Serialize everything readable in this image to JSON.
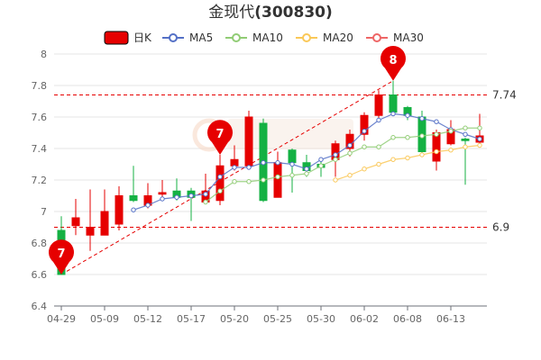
{
  "chart_data": {
    "type": "candlestick",
    "title": "金现代",
    "code": "(300830)",
    "legend": [
      {
        "name": "日K",
        "key": "k",
        "color": "#e60000",
        "style": "candle"
      },
      {
        "name": "MA5",
        "key": "ma5",
        "color": "#5470c6",
        "style": "line"
      },
      {
        "name": "MA10",
        "key": "ma10",
        "color": "#91cc75",
        "style": "line"
      },
      {
        "name": "MA20",
        "key": "ma20",
        "color": "#fac858",
        "style": "line"
      },
      {
        "name": "MA30",
        "key": "ma30",
        "color": "#ee6666",
        "style": "line"
      }
    ],
    "y_axis": {
      "min": 6.4,
      "max": 8,
      "ticks": [
        6.4,
        6.6,
        6.8,
        7,
        7.2,
        7.4,
        7.6,
        7.8,
        8
      ],
      "tick_labels": [
        "6.4",
        "6.6",
        "6.8",
        "7",
        "7.2",
        "7.4",
        "7.6",
        "7.8",
        "8"
      ]
    },
    "x_tick_labels": [
      {
        "index": 0,
        "label": "04-29"
      },
      {
        "index": 3,
        "label": "05-09"
      },
      {
        "index": 6,
        "label": "05-12"
      },
      {
        "index": 9,
        "label": "05-17"
      },
      {
        "index": 12,
        "label": "05-20"
      },
      {
        "index": 15,
        "label": "05-25"
      },
      {
        "index": 18,
        "label": "05-30"
      },
      {
        "index": 21,
        "label": "06-02"
      },
      {
        "index": 24,
        "label": "06-08"
      },
      {
        "index": 27,
        "label": "06-13"
      }
    ],
    "candles": [
      {
        "o": 6.88,
        "c": 6.6,
        "h": 6.97,
        "l": 6.6
      },
      {
        "o": 6.91,
        "c": 6.96,
        "h": 7.08,
        "l": 6.85
      },
      {
        "o": 6.85,
        "c": 6.9,
        "h": 7.14,
        "l": 6.75
      },
      {
        "o": 6.85,
        "c": 7.0,
        "h": 7.14,
        "l": 6.85
      },
      {
        "o": 6.92,
        "c": 7.1,
        "h": 7.16,
        "l": 6.88
      },
      {
        "o": 7.1,
        "c": 7.07,
        "h": 7.29,
        "l": 7.06
      },
      {
        "o": 7.04,
        "c": 7.1,
        "h": 7.18,
        "l": 7.02
      },
      {
        "o": 7.11,
        "c": 7.12,
        "h": 7.2,
        "l": 7.08
      },
      {
        "o": 7.13,
        "c": 7.09,
        "h": 7.21,
        "l": 7.07
      },
      {
        "o": 7.13,
        "c": 7.09,
        "h": 7.15,
        "l": 6.94
      },
      {
        "o": 7.06,
        "c": 7.13,
        "h": 7.24,
        "l": 7.05
      },
      {
        "o": 7.07,
        "c": 7.29,
        "h": 7.36,
        "l": 7.04
      },
      {
        "o": 7.29,
        "c": 7.33,
        "h": 7.42,
        "l": 7.26
      },
      {
        "o": 7.29,
        "c": 7.6,
        "h": 7.64,
        "l": 7.28
      },
      {
        "o": 7.56,
        "c": 7.07,
        "h": 7.59,
        "l": 7.06
      },
      {
        "o": 7.09,
        "c": 7.31,
        "h": 7.38,
        "l": 7.09
      },
      {
        "o": 7.39,
        "c": 7.31,
        "h": 7.4,
        "l": 7.12
      },
      {
        "o": 7.31,
        "c": 7.26,
        "h": 7.36,
        "l": 7.22
      },
      {
        "o": 7.3,
        "c": 7.28,
        "h": 7.32,
        "l": 7.22
      },
      {
        "o": 7.33,
        "c": 7.43,
        "h": 7.45,
        "l": 7.22
      },
      {
        "o": 7.4,
        "c": 7.49,
        "h": 7.52,
        "l": 7.35
      },
      {
        "o": 7.49,
        "c": 7.61,
        "h": 7.63,
        "l": 7.45
      },
      {
        "o": 7.61,
        "c": 7.74,
        "h": 7.77,
        "l": 7.58
      },
      {
        "o": 7.74,
        "c": 7.63,
        "h": 7.83,
        "l": 7.62
      },
      {
        "o": 7.66,
        "c": 7.61,
        "h": 7.67,
        "l": 7.58
      },
      {
        "o": 7.6,
        "c": 7.38,
        "h": 7.64,
        "l": 7.37
      },
      {
        "o": 7.32,
        "c": 7.5,
        "h": 7.52,
        "l": 7.26
      },
      {
        "o": 7.43,
        "c": 7.52,
        "h": 7.58,
        "l": 7.42
      },
      {
        "o": 7.46,
        "c": 7.45,
        "h": 7.47,
        "l": 7.17
      },
      {
        "o": 7.44,
        "c": 7.48,
        "h": 7.62,
        "l": 7.43
      }
    ],
    "ma": {
      "ma5": [
        null,
        null,
        null,
        null,
        null,
        7.01,
        7.04,
        7.08,
        7.09,
        7.1,
        7.11,
        7.22,
        7.28,
        7.28,
        7.31,
        7.31,
        7.3,
        7.27,
        7.33,
        7.36,
        7.42,
        7.51,
        7.58,
        7.62,
        7.61,
        7.59,
        7.57,
        7.52,
        7.49,
        7.46
      ],
      "ma10": [
        null,
        null,
        null,
        null,
        null,
        null,
        null,
        null,
        null,
        null,
        7.06,
        7.13,
        7.19,
        7.19,
        7.2,
        7.22,
        7.23,
        7.24,
        7.29,
        7.33,
        7.37,
        7.41,
        7.41,
        7.47,
        7.47,
        7.48,
        7.49,
        7.51,
        7.53,
        7.53
      ],
      "ma20": [
        null,
        null,
        null,
        null,
        null,
        null,
        null,
        null,
        null,
        null,
        null,
        null,
        null,
        null,
        null,
        null,
        null,
        null,
        null,
        7.2,
        7.23,
        7.27,
        7.3,
        7.33,
        7.34,
        7.36,
        7.38,
        7.39,
        7.41,
        7.42
      ]
    },
    "reference_lines": [
      {
        "value": 7.74,
        "label": "7.74"
      },
      {
        "value": 6.9,
        "label": "6.9"
      }
    ],
    "trend_line": {
      "from": {
        "index": 0,
        "value": 6.6
      },
      "to": {
        "index": 23,
        "value": 7.83
      }
    },
    "markers": [
      {
        "index": 0,
        "value": 6.6,
        "label": "7"
      },
      {
        "index": 11,
        "value": 7.36,
        "label": "7"
      },
      {
        "index": 23,
        "value": 7.83,
        "label": "8"
      }
    ]
  }
}
